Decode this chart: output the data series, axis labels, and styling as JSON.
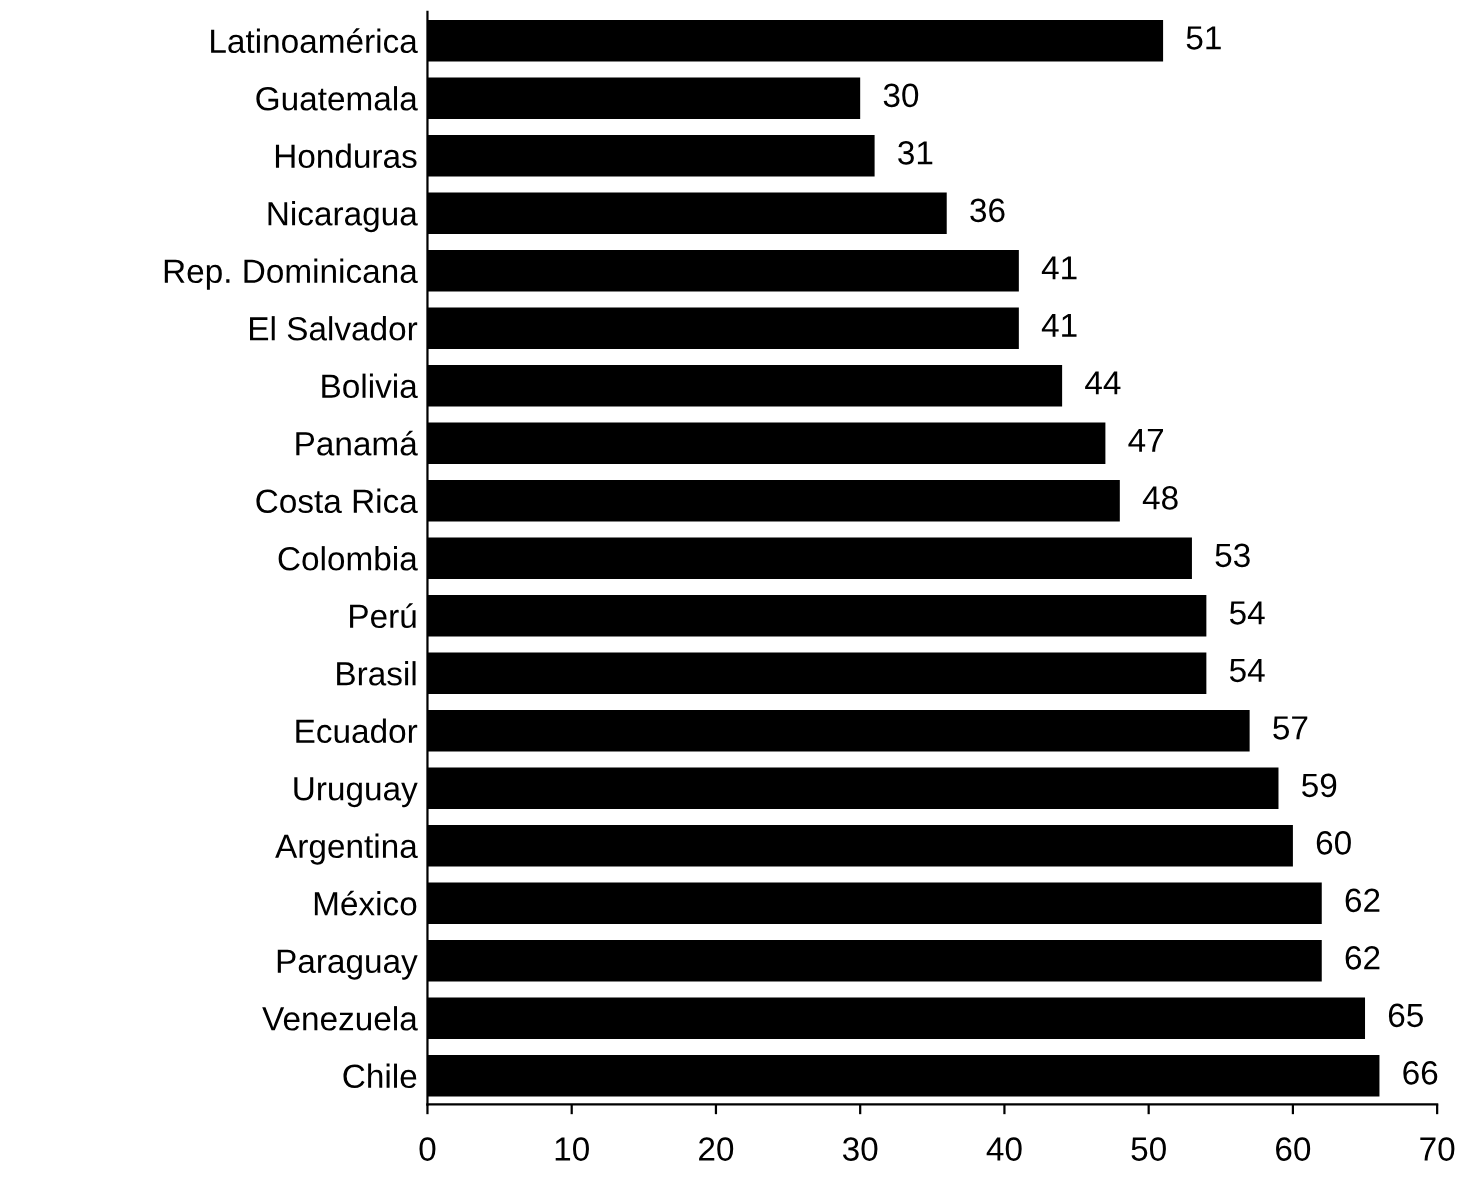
{
  "chart_data": {
    "type": "bar",
    "orientation": "horizontal",
    "categories": [
      "Latinoamérica",
      "Guatemala",
      "Honduras",
      "Nicaragua",
      "Rep. Dominicana",
      "El Salvador",
      "Bolivia",
      "Panamá",
      "Costa Rica",
      "Colombia",
      "Perú",
      "Brasil",
      "Ecuador",
      "Uruguay",
      "Argentina",
      "México",
      "Paraguay",
      "Venezuela",
      "Chile"
    ],
    "values": [
      51,
      30,
      31,
      36,
      41,
      41,
      44,
      47,
      48,
      53,
      54,
      54,
      57,
      59,
      60,
      62,
      62,
      65,
      66
    ],
    "color": "#000000",
    "xlim": [
      0,
      70
    ],
    "xticks": [
      0,
      10,
      20,
      30,
      40,
      50,
      60,
      70
    ],
    "data_labels": true,
    "grid": false,
    "legend": false
  }
}
